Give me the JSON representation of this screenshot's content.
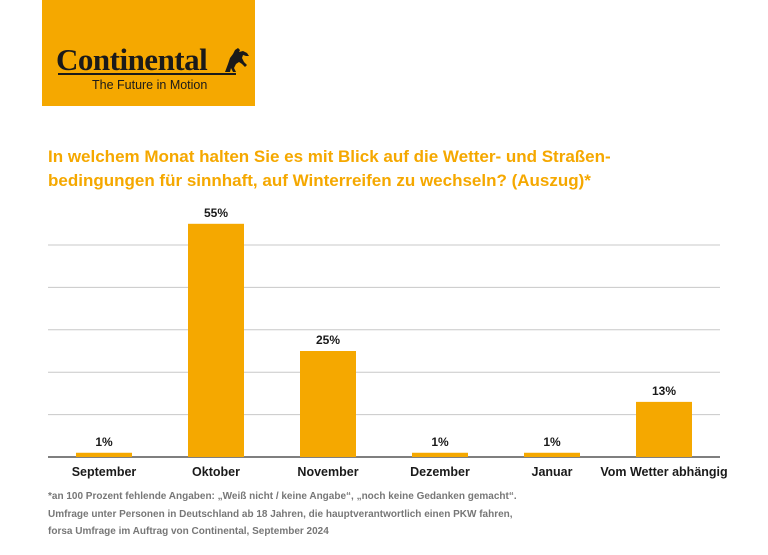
{
  "brand": {
    "name": "Continental",
    "tagline": "The Future in Motion",
    "logo_icon": "horse-icon",
    "accent_color": "#F5A800"
  },
  "chart_data": {
    "type": "bar",
    "title_line1": "In welchem Monat halten Sie es mit Blick auf die Wetter- und Straßen-",
    "title_line2": "bedingungen für sinnhaft, auf Winterreifen zu wechseln? (Auszug)*",
    "categories": [
      "September",
      "Oktober",
      "November",
      "Dezember",
      "Januar",
      "Vom Wetter abhängig"
    ],
    "values": [
      1,
      55,
      25,
      1,
      1,
      13
    ],
    "value_labels": [
      "1%",
      "55%",
      "25%",
      "1%",
      "1%",
      "13%"
    ],
    "unit": "%",
    "ylim": [
      0,
      50
    ],
    "gridlines": [
      0,
      10,
      20,
      30,
      40,
      50
    ],
    "grid": true,
    "xlabel": "",
    "ylabel": "",
    "bar_color": "#F5A800"
  },
  "footnotes": [
    "*an 100 Prozent fehlende Angaben: „Weiß nicht / keine Angabe“, „noch keine Gedanken gemacht“.",
    "Umfrage unter Personen in Deutschland ab 18 Jahren, die hauptverantwortlich einen PKW fahren,",
    "forsa Umfrage im Auftrag von Continental, September 2024"
  ]
}
